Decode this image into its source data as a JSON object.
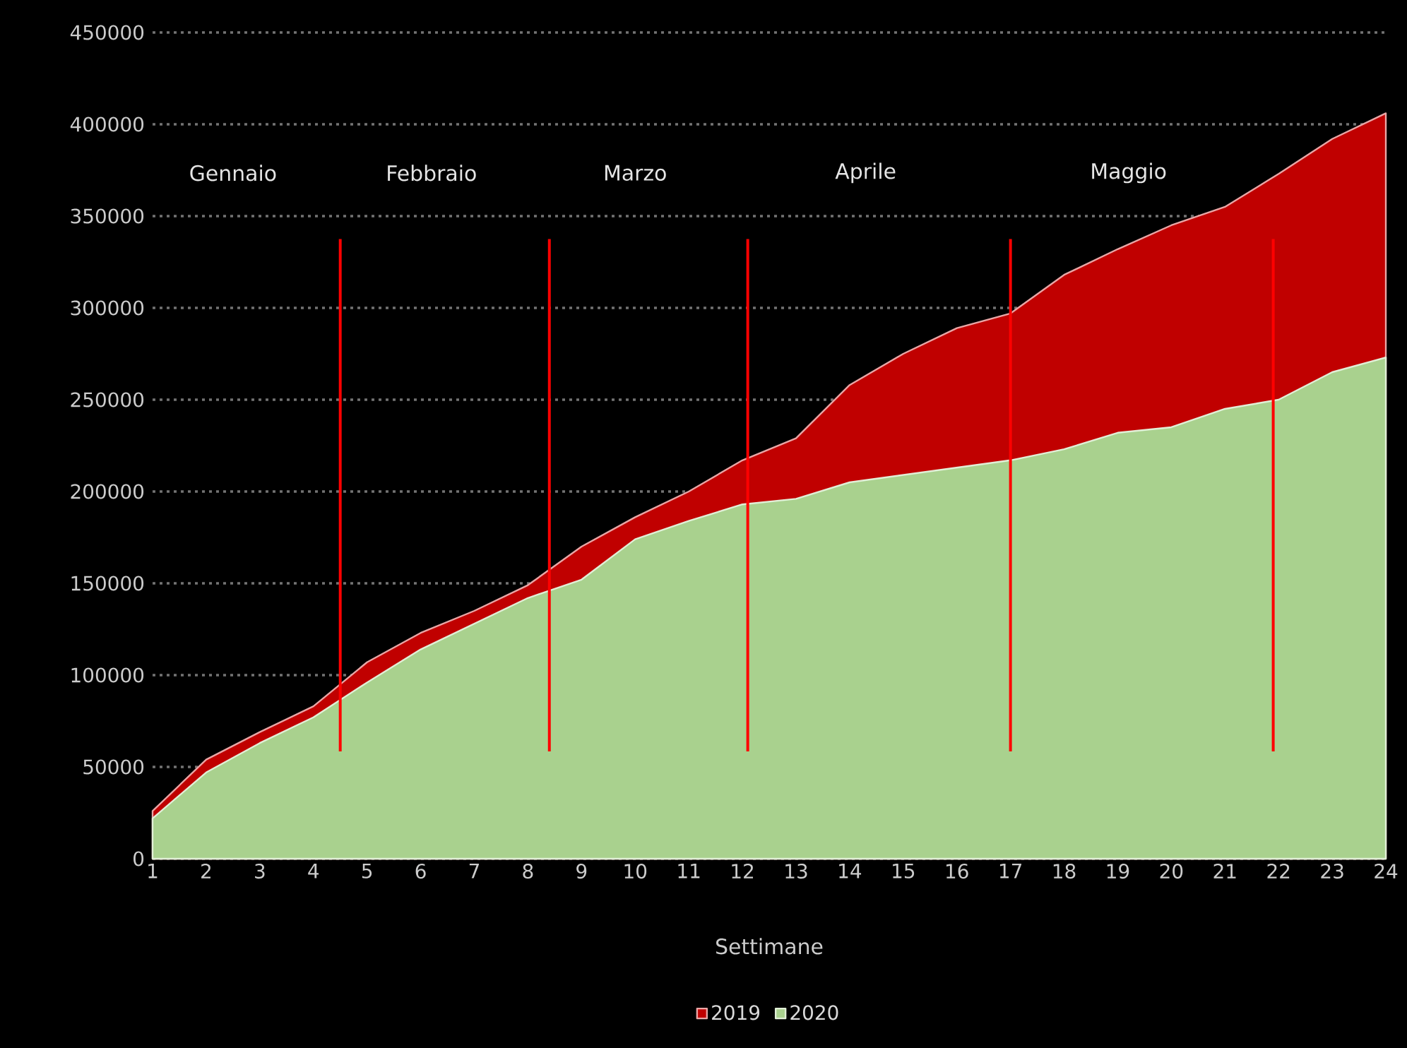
{
  "chart_data": {
    "type": "area",
    "xlabel": "Settimane",
    "x": [
      1,
      2,
      3,
      4,
      5,
      6,
      7,
      8,
      9,
      10,
      11,
      12,
      13,
      14,
      15,
      16,
      17,
      18,
      19,
      20,
      21,
      22,
      23,
      24
    ],
    "series": [
      {
        "name": "2019",
        "color": "#c00000",
        "values": [
          26000,
          54000,
          69000,
          83000,
          107000,
          123000,
          135000,
          149000,
          170000,
          186000,
          200000,
          217000,
          229000,
          258000,
          275000,
          289000,
          297000,
          318000,
          332000,
          345000,
          355000,
          373000,
          392000,
          406000
        ]
      },
      {
        "name": "2020",
        "color": "#a9d18e",
        "values": [
          22000,
          47000,
          63000,
          77000,
          96000,
          114000,
          128000,
          142000,
          152000,
          174000,
          184000,
          193000,
          196000,
          205000,
          209000,
          213000,
          217000,
          223000,
          232000,
          235000,
          245000,
          250000,
          265000,
          273000
        ]
      }
    ],
    "xlim": [
      1,
      24
    ],
    "xticks": [
      1,
      2,
      3,
      4,
      5,
      6,
      7,
      8,
      9,
      10,
      11,
      12,
      13,
      14,
      15,
      16,
      17,
      18,
      19,
      20,
      21,
      22,
      23,
      24
    ],
    "ylim": [
      0,
      450000
    ],
    "yticks": [
      0,
      50000,
      100000,
      150000,
      200000,
      250000,
      300000,
      350000,
      400000,
      450000
    ],
    "grid": "y",
    "legend": "bottom",
    "ref_lines": [
      {
        "axis": "x",
        "value": 4.5,
        "color": "#ff0000"
      },
      {
        "axis": "x",
        "value": 8.4,
        "color": "#ff0000"
      },
      {
        "axis": "x",
        "value": 12.1,
        "color": "#ff0000"
      },
      {
        "axis": "x",
        "value": 17,
        "color": "#ff0000"
      },
      {
        "axis": "x",
        "value": 21.9,
        "color": "#ff0000"
      }
    ],
    "annotations": [
      "Gennaio",
      "Febbraio",
      "Marzo",
      "Aprile",
      "Maggio"
    ]
  }
}
